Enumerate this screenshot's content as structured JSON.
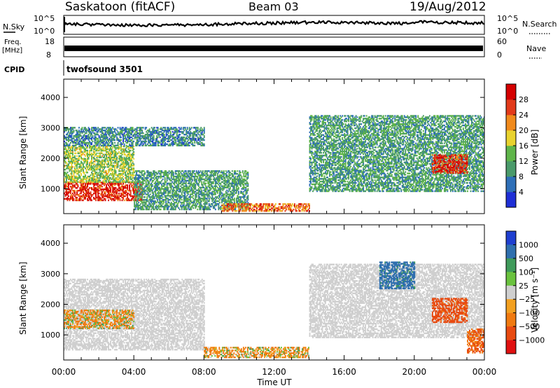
{
  "header": {
    "station": "Saskatoon (fitACF)",
    "beam": "Beam 03",
    "date": "19/Aug/2012"
  },
  "strips": {
    "nsky_label": "N.Sky",
    "nsky_ticks": [
      "10^5",
      "10^0"
    ],
    "nsearch_label": "N.Search",
    "freq_label_line1": "Freq.",
    "freq_label_line2": "[MHz]",
    "freq_ticks": [
      "18",
      "8"
    ],
    "nave_ticks": [
      "60",
      "0"
    ],
    "nave_label": "Nave",
    "cpid_label": "CPID",
    "cpid_value": "twofsound 3501"
  },
  "chart_data": [
    {
      "type": "heatmap",
      "panel": "power",
      "ylabel": "Slant Range [km]",
      "xlabel": "Time UT",
      "x_ticks": [
        "00:00",
        "04:00",
        "08:00",
        "12:00",
        "16:00",
        "20:00",
        "00:00"
      ],
      "y_ticks": [
        1000,
        2000,
        3000,
        4000
      ],
      "ylim": [
        180,
        4600
      ],
      "xlim_hours": [
        0,
        24
      ],
      "colorbar": {
        "label": "Power [dB]",
        "ticks": [
          "4",
          "8",
          "12",
          "16",
          "20",
          "24",
          "28"
        ],
        "range": [
          0,
          30
        ],
        "colors": [
          "#1f2fd6",
          "#2e6fb8",
          "#4a9a6a",
          "#5fb54a",
          "#e8d22e",
          "#f08a1c",
          "#e23a1a",
          "#d40000"
        ]
      },
      "echo_regions": [
        {
          "t0": 0.0,
          "t1": 4.5,
          "r0": 600,
          "r1": 1200,
          "power": 26
        },
        {
          "t0": 0.0,
          "t1": 4.0,
          "r0": 1200,
          "r1": 2400,
          "power": 14
        },
        {
          "t0": 0.0,
          "t1": 8.0,
          "r0": 2400,
          "r1": 3000,
          "power": 8
        },
        {
          "t0": 4.0,
          "t1": 10.5,
          "r0": 300,
          "r1": 1600,
          "power": 10
        },
        {
          "t0": 9.0,
          "t1": 14.0,
          "r0": 250,
          "r1": 500,
          "power": 22
        },
        {
          "t0": 14.0,
          "t1": 24.0,
          "r0": 900,
          "r1": 3400,
          "power": 10
        },
        {
          "t0": 21.0,
          "t1": 23.0,
          "r0": 1500,
          "r1": 2100,
          "power": 26
        }
      ]
    },
    {
      "type": "heatmap",
      "panel": "velocity",
      "ylabel": "Slant Range [km]",
      "xlabel": "Time UT",
      "x_ticks": [
        "00:00",
        "04:00",
        "08:00",
        "12:00",
        "16:00",
        "20:00",
        "00:00"
      ],
      "y_ticks": [
        1000,
        2000,
        3000,
        4000
      ],
      "ylim": [
        180,
        4600
      ],
      "xlim_hours": [
        0,
        24
      ],
      "colorbar": {
        "label": "Velocity [m s⁻¹]",
        "ticks": [
          "1000",
          "500",
          "100",
          "25",
          "−25",
          "−100",
          "−500",
          "−1000"
        ],
        "colors": [
          "#1f3fd0",
          "#2f6fae",
          "#3f9a5a",
          "#6ac23e",
          "#cfcfcf",
          "#f2a020",
          "#f07a10",
          "#e84a10",
          "#e01010"
        ]
      },
      "echo_regions": [
        {
          "t0": 0.0,
          "t1": 8.0,
          "r0": 500,
          "r1": 2800,
          "velocity": 0
        },
        {
          "t0": 0.0,
          "t1": 4.0,
          "r0": 1200,
          "r1": 1800,
          "velocity": -100
        },
        {
          "t0": 8.0,
          "t1": 14.0,
          "r0": 250,
          "r1": 600,
          "velocity": -100
        },
        {
          "t0": 14.0,
          "t1": 24.0,
          "r0": 900,
          "r1": 3300,
          "velocity": 0
        },
        {
          "t0": 18.0,
          "t1": 20.0,
          "r0": 2500,
          "r1": 3400,
          "velocity": 700
        },
        {
          "t0": 21.0,
          "t1": 23.0,
          "r0": 1400,
          "r1": 2200,
          "velocity": -700
        },
        {
          "t0": 23.0,
          "t1": 24.0,
          "r0": 400,
          "r1": 1200,
          "velocity": -500
        }
      ]
    }
  ]
}
